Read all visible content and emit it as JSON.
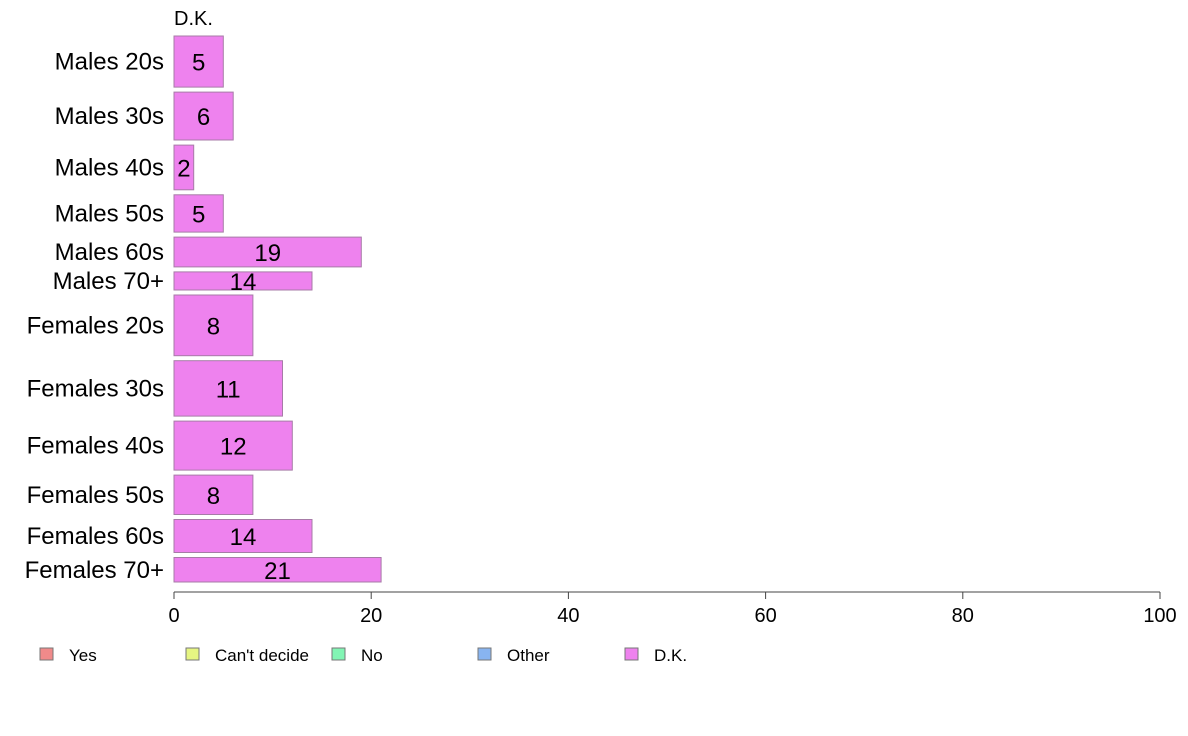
{
  "chart_data": {
    "type": "bar",
    "orientation": "horizontal",
    "title": "",
    "panel_title": "D.K.",
    "xlabel": "",
    "ylabel": "",
    "xlim": [
      0,
      100
    ],
    "xticks": [
      0,
      20,
      40,
      60,
      80,
      100
    ],
    "grid": false,
    "legend_position": "bottom",
    "categories": [
      "Males 20s",
      "Males 30s",
      "Males 40s",
      "Males 50s",
      "Males 60s",
      "Males 70+",
      "Females 20s",
      "Females 30s",
      "Females 40s",
      "Females 50s",
      "Females 60s",
      "Females 70+"
    ],
    "category_weights": [
      48,
      45,
      42,
      35,
      28,
      17,
      57,
      52,
      46,
      37,
      31,
      23
    ],
    "series": [
      {
        "name": "D.K.",
        "color": "#ee82ee",
        "values": [
          5,
          6,
          2,
          5,
          19,
          14,
          8,
          11,
          12,
          8,
          14,
          21
        ]
      }
    ],
    "legend": [
      {
        "label": "Yes",
        "color": "#f08a8a"
      },
      {
        "label": "Can't decide",
        "color": "#e6f582"
      },
      {
        "label": "No",
        "color": "#82f5b4"
      },
      {
        "label": "Other",
        "color": "#88b4f0"
      },
      {
        "label": "D.K.",
        "color": "#ee82ee"
      }
    ]
  }
}
